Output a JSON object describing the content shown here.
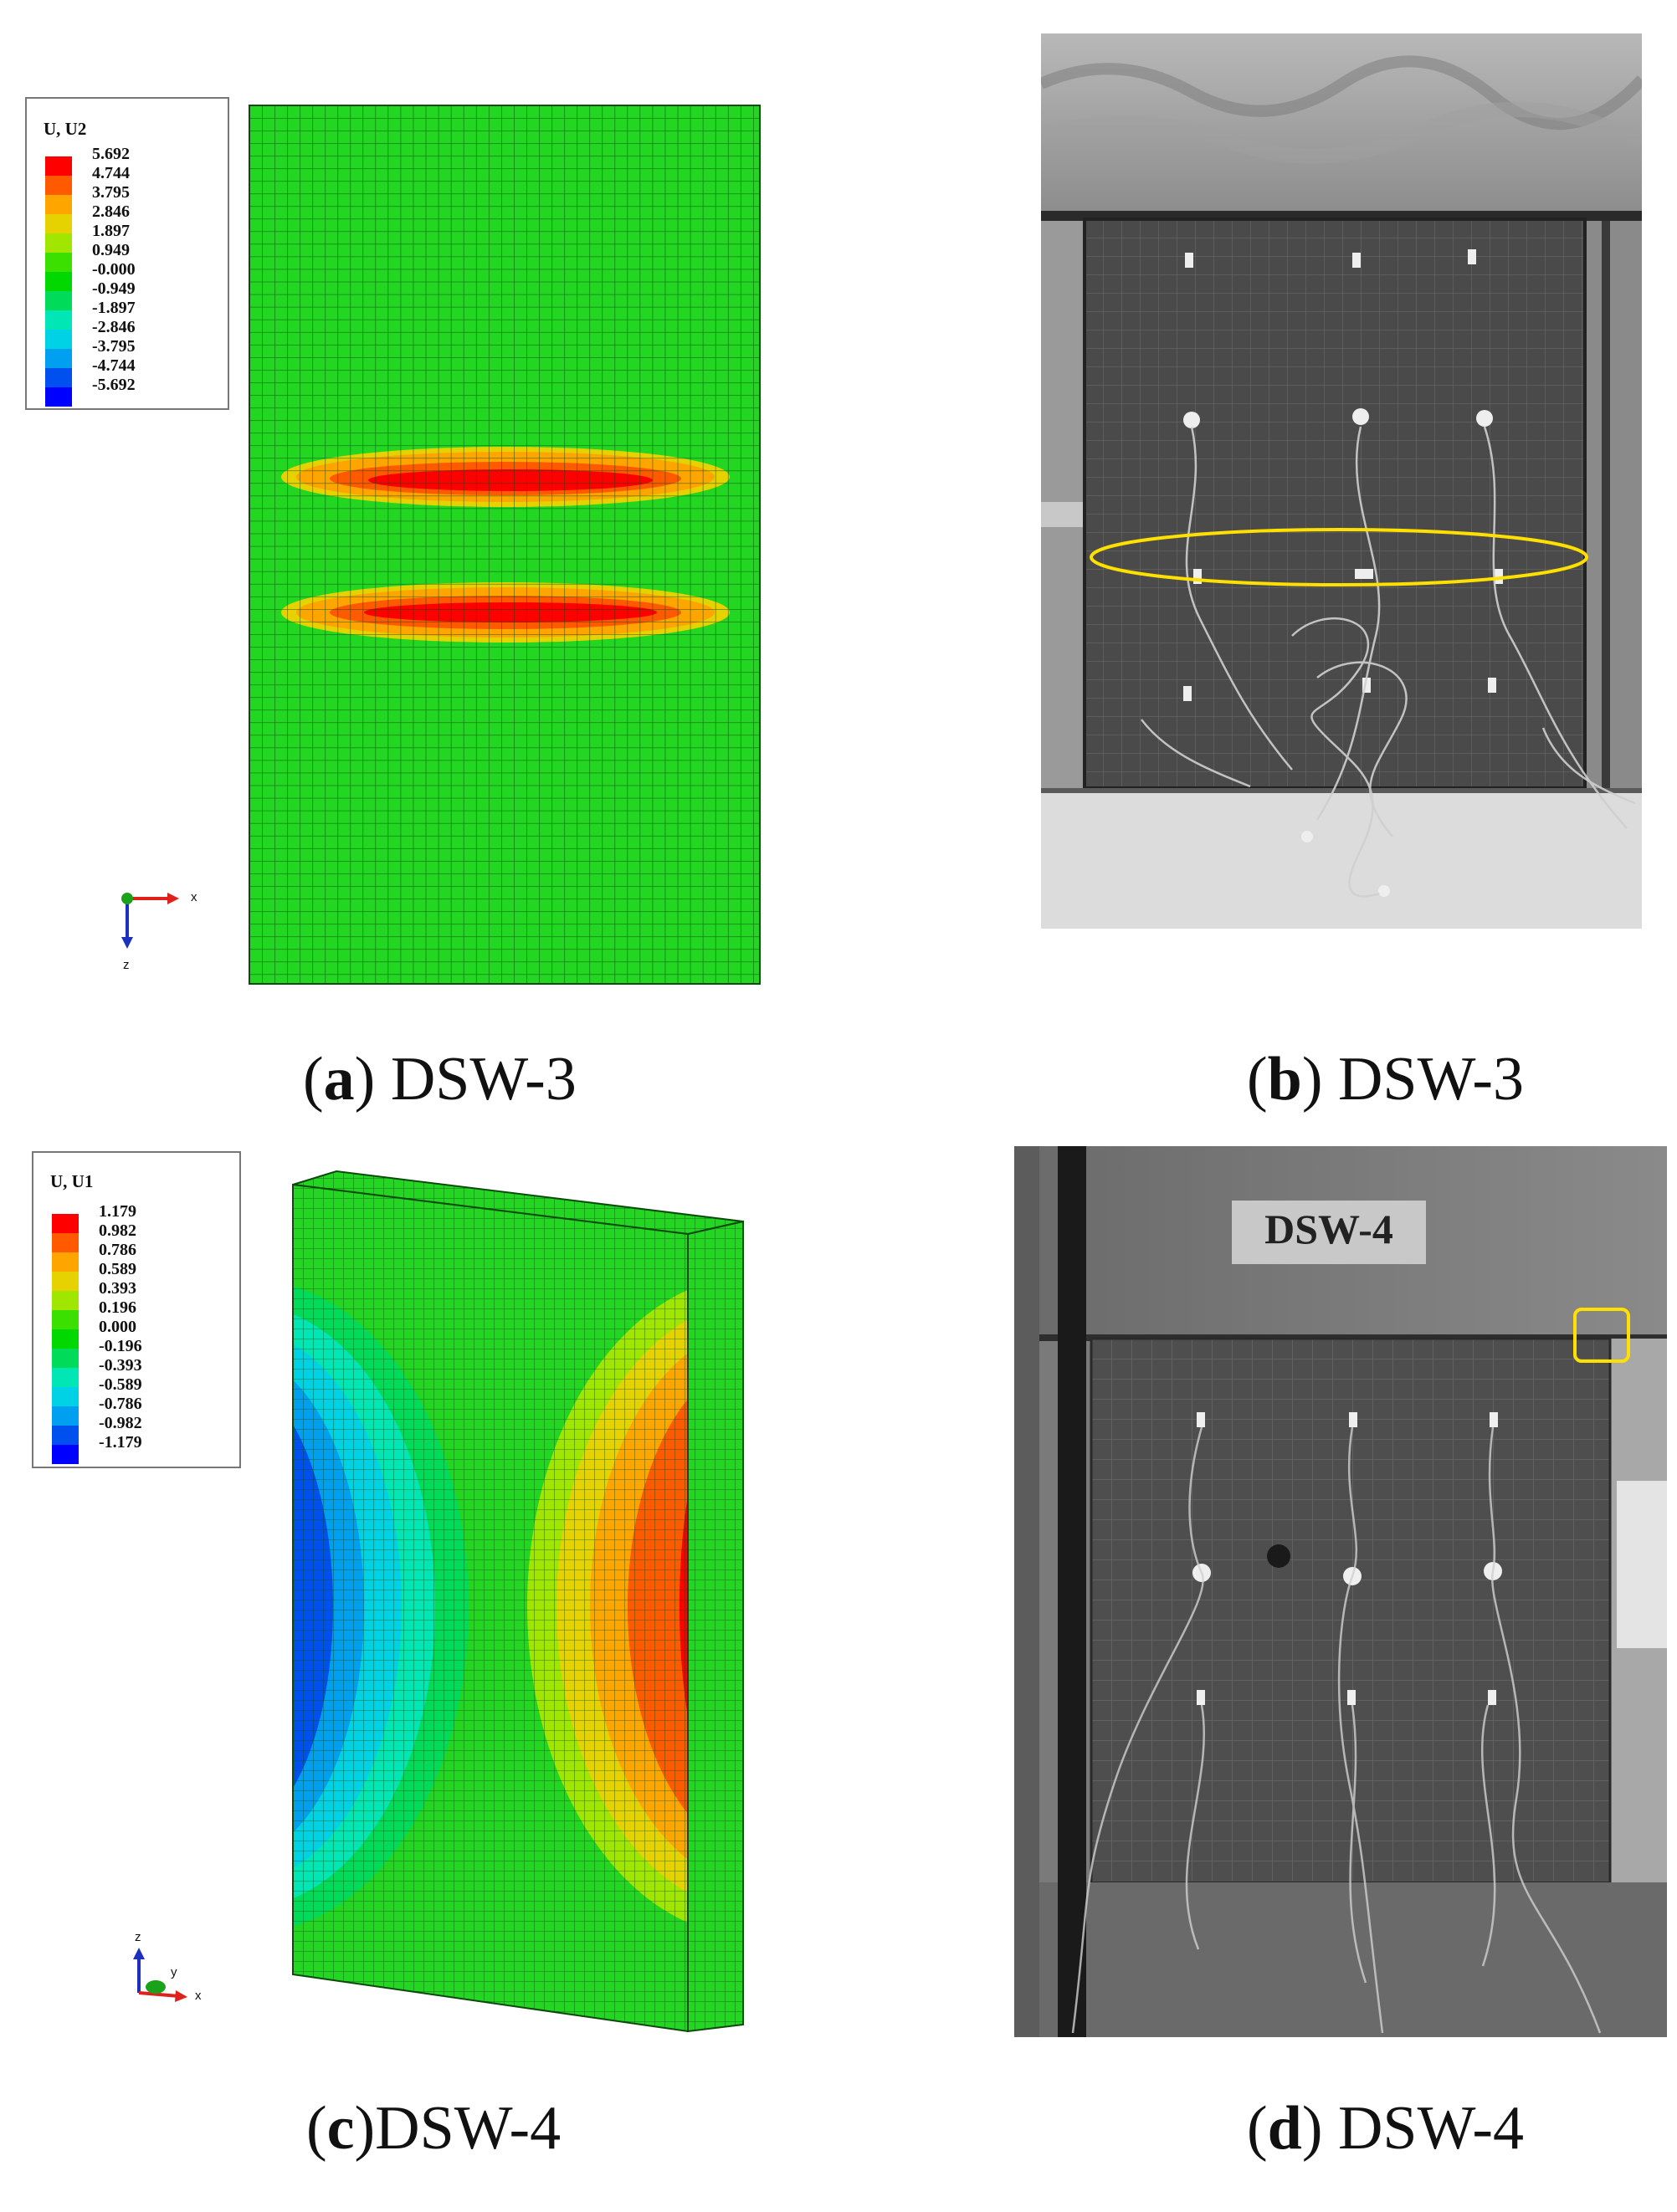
{
  "panels": {
    "a": {
      "legend_title": "U, U2",
      "legend_values": [
        "5.692",
        "4.744",
        "3.795",
        "2.846",
        "1.897",
        "0.949",
        "-0.000",
        "-0.949",
        "-1.897",
        "-2.846",
        "-3.795",
        "-4.744",
        "-5.692"
      ],
      "axis_labels": {
        "h": "x",
        "v": "z"
      },
      "caption_letter": "a",
      "caption_text": " DSW-3"
    },
    "b": {
      "caption_letter": "b",
      "caption_text": " DSW-3"
    },
    "c": {
      "legend_title": "U, U1",
      "legend_values": [
        "1.179",
        "0.982",
        "0.786",
        "0.589",
        "0.393",
        "0.196",
        "0.000",
        "-0.196",
        "-0.393",
        "-0.589",
        "-0.786",
        "-0.982",
        "-1.179"
      ],
      "axis_labels": {
        "v": "z",
        "d": "y",
        "h": "x"
      },
      "caption_letter": "c",
      "caption_text": "DSW-4"
    },
    "d": {
      "sign_text": "DSW-4",
      "caption_letter": "d",
      "caption_text": " DSW-4"
    }
  },
  "legend_colors": [
    "#ff0000",
    "#ff5a00",
    "#ffa500",
    "#e6d200",
    "#a0e600",
    "#3ce000",
    "#00d800",
    "#00dc5a",
    "#00e6b4",
    "#00d2e6",
    "#009ff0",
    "#0050f0",
    "#0000ff"
  ],
  "highlight_color": "#ffe000",
  "mesh_green": "#22d622"
}
